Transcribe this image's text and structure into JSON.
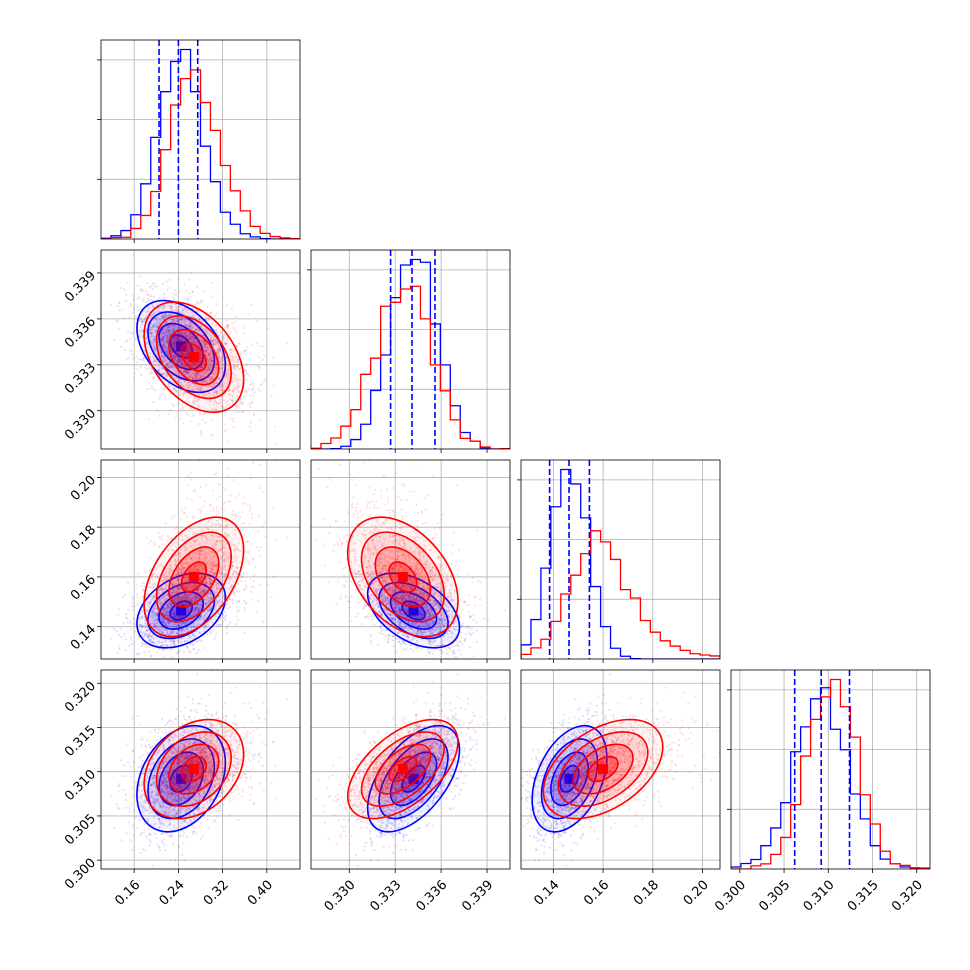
{
  "chart_data": {
    "type": "corner",
    "n_params": 4,
    "grid": true,
    "colors": {
      "series_a": "#0000ff",
      "series_b": "#ff0000"
    },
    "params": [
      {
        "range": [
          0.1,
          0.46
        ],
        "ticks": [
          0.16,
          0.24,
          0.32,
          0.4
        ],
        "tick_labels": [
          "0.16",
          "0.24",
          "0.32",
          "0.40"
        ]
      },
      {
        "range": [
          0.3275,
          0.3405
        ],
        "ticks": [
          0.33,
          0.333,
          0.336,
          0.339
        ],
        "tick_labels": [
          "0.330",
          "0.333",
          "0.336",
          "0.339"
        ]
      },
      {
        "range": [
          0.127,
          0.207
        ],
        "ticks": [
          0.14,
          0.16,
          0.18,
          0.2
        ],
        "tick_labels": [
          "0.14",
          "0.16",
          "0.18",
          "0.20"
        ]
      },
      {
        "range": [
          0.299,
          0.3215
        ],
        "ticks": [
          0.3,
          0.305,
          0.31,
          0.315,
          0.32
        ],
        "tick_labels": [
          "0.300",
          "0.305",
          "0.310",
          "0.315",
          "0.320"
        ]
      }
    ],
    "series": [
      {
        "color": "#0000ff",
        "mean": [
          0.245,
          0.3342,
          0.1465,
          0.3092
        ],
        "sd": [
          0.04,
          0.0015,
          0.0075,
          0.003
        ],
        "corr": [
          [
            0,
            1,
            -0.4
          ],
          [
            0,
            2,
            0.35
          ],
          [
            0,
            3,
            0.3
          ],
          [
            1,
            2,
            -0.45
          ],
          [
            1,
            3,
            0.55
          ],
          [
            2,
            3,
            0.4
          ]
        ],
        "quantiles": [
          [
            0.205,
            0.24,
            0.275
          ],
          [
            0.3327,
            0.3341,
            0.3356
          ],
          [
            0.1385,
            0.1463,
            0.1545
          ],
          [
            0.3062,
            0.3092,
            0.3124
          ]
        ]
      },
      {
        "color": "#ff0000",
        "mean": [
          0.268,
          0.3335,
          0.16,
          0.3103
        ],
        "sd": [
          0.045,
          0.0018,
          0.012,
          0.0028
        ],
        "corr": [
          [
            0,
            1,
            -0.4
          ],
          [
            0,
            2,
            0.45
          ],
          [
            0,
            3,
            0.3
          ],
          [
            1,
            2,
            -0.4
          ],
          [
            1,
            3,
            0.55
          ],
          [
            2,
            3,
            0.45
          ]
        ]
      }
    ]
  }
}
